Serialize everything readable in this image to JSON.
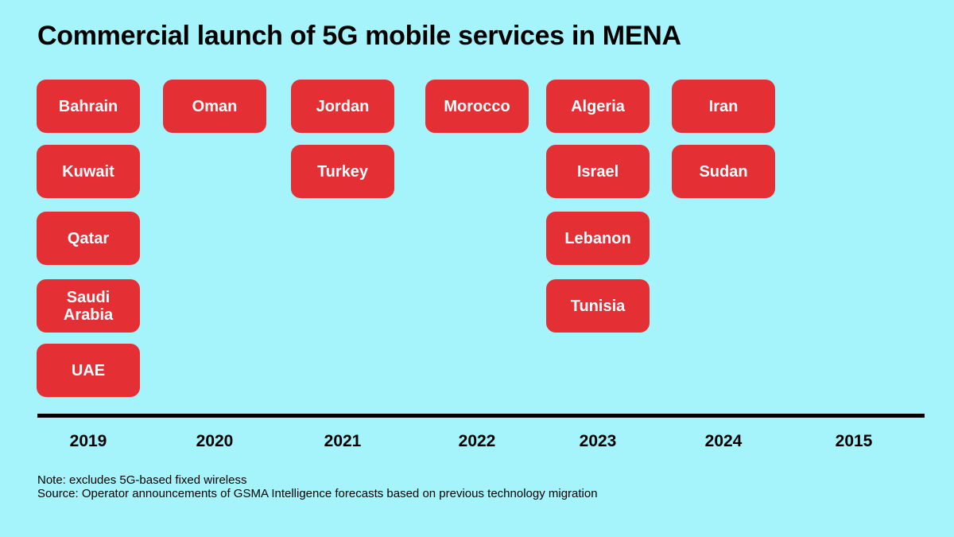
{
  "title": "Commercial launch of 5G mobile services in MENA",
  "columns": [
    {
      "year": "2019",
      "countries": [
        "Bahrain",
        "Kuwait",
        "Qatar",
        "Saudi Arabia",
        "UAE"
      ]
    },
    {
      "year": "2020",
      "countries": [
        "Oman"
      ]
    },
    {
      "year": "2021",
      "countries": [
        "Jordan",
        "Turkey"
      ]
    },
    {
      "year": "2022",
      "countries": [
        "Morocco"
      ]
    },
    {
      "year": "2023",
      "countries": [
        "Algeria",
        "Israel",
        "Lebanon",
        "Tunisia"
      ]
    },
    {
      "year": "2024",
      "countries": [
        "Iran",
        "Sudan"
      ]
    },
    {
      "year": "2015",
      "countries": []
    }
  ],
  "notes": [
    "Note: excludes 5G-based fixed wireless",
    "Source: Operator announcements of GSMA Intelligence forecasts based on previous technology migration"
  ]
}
